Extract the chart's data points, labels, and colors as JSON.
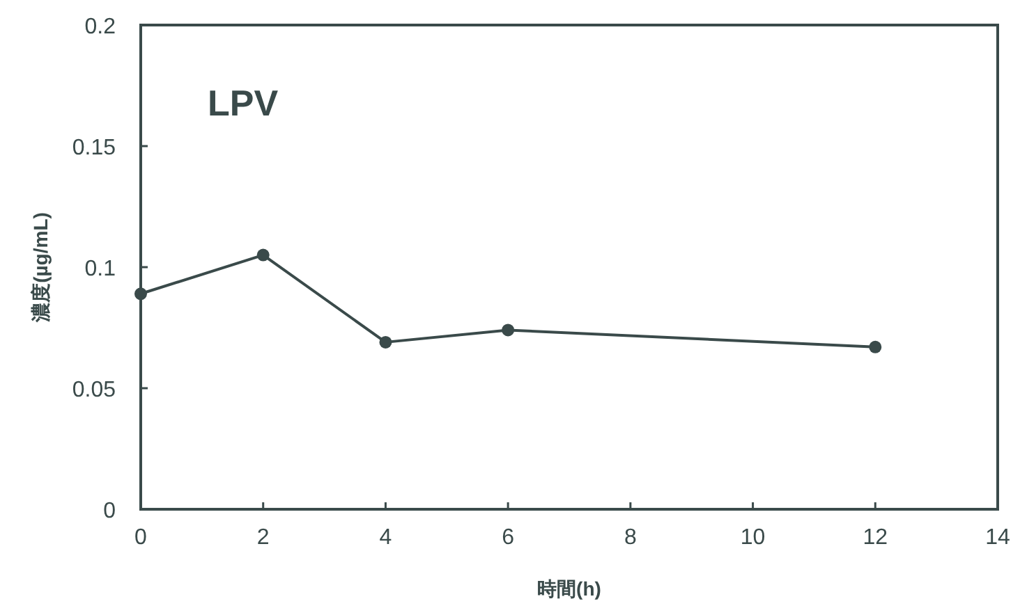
{
  "chart_data": {
    "type": "line",
    "title": "LPV",
    "xlabel": "時間(h)",
    "ylabel": "濃度(µg/mL)",
    "x": [
      0,
      2,
      4,
      6,
      12
    ],
    "series": [
      {
        "color": "#3a4a4a",
        "values": [
          0.089,
          0.105,
          0.069,
          0.074,
          0.067
        ]
      }
    ],
    "xlim": [
      0,
      14
    ],
    "xticks": [
      0,
      2,
      4,
      6,
      8,
      10,
      12,
      14
    ],
    "ylim": [
      0,
      0.2
    ],
    "yticks": [
      0,
      0.05,
      0.1,
      0.15,
      0.2
    ],
    "marker": "circle",
    "line_style": "solid"
  }
}
